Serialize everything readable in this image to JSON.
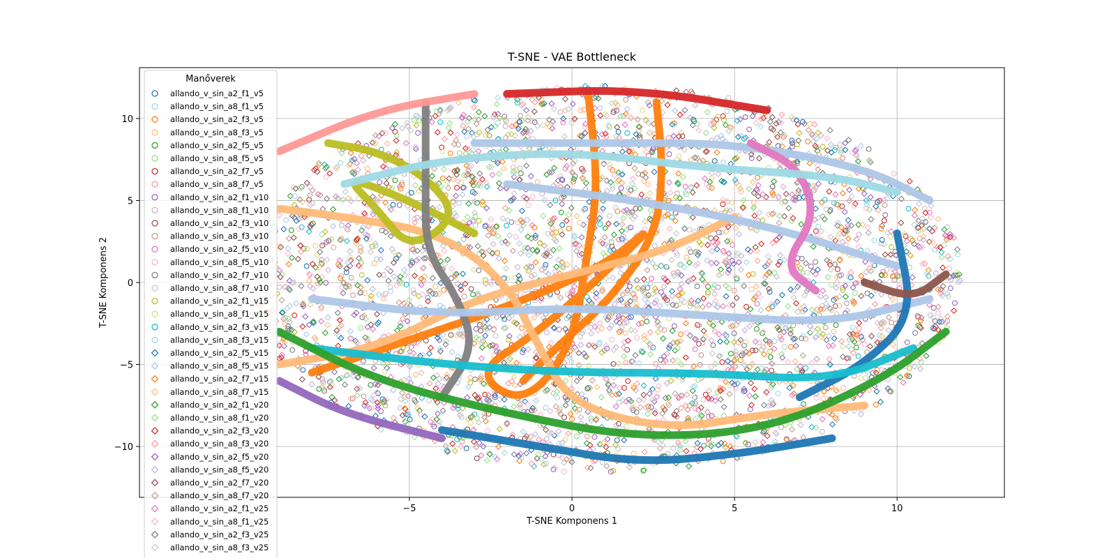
{
  "chart_data": {
    "type": "scatter",
    "title": "T-SNE - VAE Bottleneck",
    "xlabel": "T-SNE Komponens 1",
    "ylabel": "T-SNE Komponens 2",
    "xlim": [
      -13.3,
      13.3
    ],
    "ylim": [
      -13.1,
      13.1
    ],
    "xticks": [
      -5,
      0,
      5,
      10
    ],
    "yticks": [
      -10,
      -5,
      0,
      5,
      10
    ],
    "grid": true,
    "legend": {
      "title": "Manőverek",
      "placement": "upper-left"
    },
    "series": [
      {
        "name": "allando_v_sin_a2_f1_v5",
        "color": "#1f77b4",
        "marker": "circle"
      },
      {
        "name": "allando_v_sin_a8_f1_v5",
        "color": "#aec7e8",
        "marker": "circle"
      },
      {
        "name": "allando_v_sin_a2_f3_v5",
        "color": "#ff7f0e",
        "marker": "circle"
      },
      {
        "name": "allando_v_sin_a8_f3_v5",
        "color": "#ffbb78",
        "marker": "circle"
      },
      {
        "name": "allando_v_sin_a2_f5_v5",
        "color": "#2ca02c",
        "marker": "circle"
      },
      {
        "name": "allando_v_sin_a8_f5_v5",
        "color": "#98df8a",
        "marker": "circle"
      },
      {
        "name": "allando_v_sin_a2_f7_v5",
        "color": "#d62728",
        "marker": "circle"
      },
      {
        "name": "allando_v_sin_a8_f7_v5",
        "color": "#ff9896",
        "marker": "circle"
      },
      {
        "name": "allando_v_sin_a2_f1_v10",
        "color": "#9467bd",
        "marker": "circle"
      },
      {
        "name": "allando_v_sin_a8_f1_v10",
        "color": "#c5b0d5",
        "marker": "circle"
      },
      {
        "name": "allando_v_sin_a2_f3_v10",
        "color": "#8c564b",
        "marker": "circle"
      },
      {
        "name": "allando_v_sin_a8_f3_v10",
        "color": "#c49c94",
        "marker": "circle"
      },
      {
        "name": "allando_v_sin_a2_f5_v10",
        "color": "#e377c2",
        "marker": "circle"
      },
      {
        "name": "allando_v_sin_a8_f5_v10",
        "color": "#f7b6d2",
        "marker": "circle"
      },
      {
        "name": "allando_v_sin_a2_f7_v10",
        "color": "#7f7f7f",
        "marker": "circle"
      },
      {
        "name": "allando_v_sin_a8_f7_v10",
        "color": "#c7c7c7",
        "marker": "circle"
      },
      {
        "name": "allando_v_sin_a2_f1_v15",
        "color": "#bcbd22",
        "marker": "circle"
      },
      {
        "name": "allando_v_sin_a8_f1_v15",
        "color": "#dbdb8d",
        "marker": "circle"
      },
      {
        "name": "allando_v_sin_a2_f3_v15",
        "color": "#17becf",
        "marker": "circle"
      },
      {
        "name": "allando_v_sin_a8_f3_v15",
        "color": "#9edae5",
        "marker": "circle"
      },
      {
        "name": "allando_v_sin_a2_f5_v15",
        "color": "#1f77b4",
        "marker": "diamond"
      },
      {
        "name": "allando_v_sin_a8_f5_v15",
        "color": "#aec7e8",
        "marker": "diamond"
      },
      {
        "name": "allando_v_sin_a2_f7_v15",
        "color": "#ff7f0e",
        "marker": "diamond"
      },
      {
        "name": "allando_v_sin_a8_f7_v15",
        "color": "#ffbb78",
        "marker": "diamond"
      },
      {
        "name": "allando_v_sin_a2_f1_v20",
        "color": "#2ca02c",
        "marker": "diamond"
      },
      {
        "name": "allando_v_sin_a8_f1_v20",
        "color": "#98df8a",
        "marker": "diamond"
      },
      {
        "name": "allando_v_sin_a2_f3_v20",
        "color": "#d62728",
        "marker": "diamond"
      },
      {
        "name": "allando_v_sin_a8_f3_v20",
        "color": "#ff9896",
        "marker": "diamond"
      },
      {
        "name": "allando_v_sin_a2_f5_v20",
        "color": "#9467bd",
        "marker": "diamond"
      },
      {
        "name": "allando_v_sin_a8_f5_v20",
        "color": "#c5b0d5",
        "marker": "diamond"
      },
      {
        "name": "allando_v_sin_a2_f7_v20",
        "color": "#8c564b",
        "marker": "diamond"
      },
      {
        "name": "allando_v_sin_a8_f7_v20",
        "color": "#c49c94",
        "marker": "diamond"
      },
      {
        "name": "allando_v_sin_a2_f1_v25",
        "color": "#e377c2",
        "marker": "diamond"
      },
      {
        "name": "allando_v_sin_a8_f1_v25",
        "color": "#f7b6d2",
        "marker": "diamond"
      },
      {
        "name": "allando_v_sin_a2_f3_v25",
        "color": "#7f7f7f",
        "marker": "diamond"
      },
      {
        "name": "allando_v_sin_a8_f3_v25",
        "color": "#c7c7c7",
        "marker": "diamond"
      }
    ],
    "trajectories": [
      {
        "series": "allando_v_sin_a2_f7_v15",
        "color": "#ff7f0e",
        "points": [
          [
            -8,
            -5.5
          ],
          [
            -5,
            -3.5
          ],
          [
            -2,
            -1.5
          ],
          [
            1,
            1
          ],
          [
            2.5,
            3.5
          ],
          [
            1.5,
            1.5
          ],
          [
            -1,
            -3
          ],
          [
            -3,
            -5.5
          ],
          [
            -1.5,
            -7.5
          ],
          [
            0,
            -4
          ],
          [
            0.5,
            2
          ],
          [
            0.8,
            6
          ],
          [
            0.5,
            11.5
          ]
        ]
      },
      {
        "series": "allando_v_sin_a2_f7_v15",
        "color": "#ff7f0e",
        "points": [
          [
            2.6,
            11
          ],
          [
            2.8,
            7
          ],
          [
            2.6,
            3
          ],
          [
            1.2,
            -1
          ],
          [
            -0.5,
            -4
          ],
          [
            -1.5,
            -6
          ]
        ]
      },
      {
        "series": "allando_v_sin_a8_f7_v15",
        "color": "#ffbb78",
        "points": [
          [
            -9,
            4.5
          ],
          [
            -7,
            4
          ],
          [
            -4,
            3
          ],
          [
            -2,
            0
          ],
          [
            -1,
            -4
          ],
          [
            0,
            -7.5
          ],
          [
            3,
            -9
          ],
          [
            6,
            -8
          ],
          [
            9,
            -7.5
          ]
        ]
      },
      {
        "series": "allando_v_sin_a8_f7_v15",
        "color": "#ffbb78",
        "points": [
          [
            -9,
            -5
          ],
          [
            -6,
            -4
          ],
          [
            -3,
            -1
          ],
          [
            0,
            0.5
          ],
          [
            3,
            2
          ],
          [
            5,
            4
          ]
        ]
      },
      {
        "series": "allando_v_sin_a2_f1_v15",
        "color": "#bcbd22",
        "points": [
          [
            -7.5,
            8.5
          ],
          [
            -6,
            8
          ],
          [
            -4.5,
            6.5
          ],
          [
            -3.5,
            4
          ],
          [
            -5,
            2
          ],
          [
            -6,
            4.5
          ],
          [
            -7,
            6.5
          ],
          [
            -5,
            5
          ],
          [
            -3,
            3
          ]
        ]
      },
      {
        "series": "allando_v_sin_a2_f7_v10",
        "color": "#7f7f7f",
        "points": [
          [
            -4.5,
            11
          ],
          [
            -4.5,
            6
          ],
          [
            -4.5,
            2
          ],
          [
            -3.5,
            -1
          ],
          [
            -3,
            -4
          ],
          [
            -4,
            -7
          ]
        ]
      },
      {
        "series": "allando_v_sin_a8_f5_v15",
        "color": "#aec7e8",
        "points": [
          [
            -3,
            8.5
          ],
          [
            1,
            8.5
          ],
          [
            5,
            8.5
          ],
          [
            9,
            7
          ],
          [
            11,
            5
          ]
        ]
      },
      {
        "series": "allando_v_sin_a8_f5_v15",
        "color": "#aec7e8",
        "points": [
          [
            -8,
            -1
          ],
          [
            -4,
            -2
          ],
          [
            0,
            -1.5
          ],
          [
            4,
            -2
          ],
          [
            8,
            -2.5
          ],
          [
            11,
            -1
          ]
        ]
      },
      {
        "series": "allando_v_sin_a8_f5_v15",
        "color": "#aec7e8",
        "points": [
          [
            -2,
            6
          ],
          [
            2,
            5
          ],
          [
            6,
            3.5
          ],
          [
            10,
            1
          ]
        ]
      },
      {
        "series": "allando_v_sin_a2_f5_v15",
        "color": "#1f77b4",
        "points": [
          [
            -4,
            -9
          ],
          [
            -1,
            -10
          ],
          [
            2,
            -11
          ],
          [
            5,
            -10.5
          ],
          [
            8,
            -9.5
          ]
        ]
      },
      {
        "series": "allando_v_sin_a2_f5_v15",
        "color": "#1f77b4",
        "points": [
          [
            7,
            -7
          ],
          [
            9,
            -5
          ],
          [
            10.5,
            -2
          ],
          [
            10,
            3
          ]
        ]
      },
      {
        "series": "allando_v_sin_a2_f1_v25",
        "color": "#e377c2",
        "points": [
          [
            5.5,
            8.5
          ],
          [
            7,
            7
          ],
          [
            7.5,
            4
          ],
          [
            6.5,
            1
          ],
          [
            7.5,
            -0.5
          ]
        ]
      },
      {
        "series": "allando_v_sin_a2_f3_v15",
        "color": "#17becf",
        "points": [
          [
            -8,
            -4
          ],
          [
            -4,
            -5
          ],
          [
            0,
            -5.5
          ],
          [
            4,
            -5.5
          ],
          [
            8,
            -6
          ],
          [
            10.5,
            -4
          ]
        ]
      },
      {
        "series": "allando_v_sin_a2_f5_v5",
        "color": "#2ca02c",
        "points": [
          [
            -9,
            -3
          ],
          [
            -6,
            -6
          ],
          [
            -2,
            -8
          ],
          [
            2,
            -9.5
          ],
          [
            6,
            -9
          ],
          [
            9.5,
            -6
          ],
          [
            11.5,
            -3
          ]
        ]
      },
      {
        "series": "allando_v_sin_a2_f7_v5",
        "color": "#d62728",
        "points": [
          [
            -2,
            11.5
          ],
          [
            2,
            11.8
          ],
          [
            6,
            10.5
          ]
        ]
      },
      {
        "series": "allando_v_sin_a8_f7_v5",
        "color": "#ff9896",
        "points": [
          [
            -9,
            8
          ],
          [
            -6,
            10.5
          ],
          [
            -3,
            11.5
          ]
        ]
      },
      {
        "series": "allando_v_sin_a2_f1_v10",
        "color": "#9467bd",
        "points": [
          [
            -9,
            -6
          ],
          [
            -7,
            -8
          ],
          [
            -4,
            -9.5
          ]
        ]
      },
      {
        "series": "allando_v_sin_a2_f3_v10",
        "color": "#8c564b",
        "points": [
          [
            9,
            0
          ],
          [
            10.5,
            -1
          ],
          [
            11.5,
            0.5
          ]
        ]
      },
      {
        "series": "allando_v_sin_a8_f3_v15",
        "color": "#9edae5",
        "points": [
          [
            -7,
            6
          ],
          [
            -4,
            7.5
          ],
          [
            0,
            8
          ],
          [
            4,
            7
          ],
          [
            8,
            6.5
          ],
          [
            10,
            5.5
          ]
        ]
      }
    ]
  }
}
